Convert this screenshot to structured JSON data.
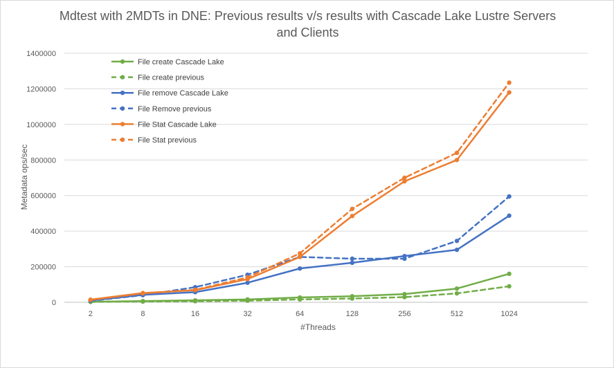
{
  "chart_data": {
    "type": "line",
    "title_line1": "Mdtest with 2MDTs in DNE:  Previous results v/s results with Cascade Lake Lustre Servers",
    "title_line2": "and Clients",
    "xlabel": "#Threads",
    "ylabel": "Metadata ops/sec",
    "categories": [
      "2",
      "8",
      "16",
      "32",
      "64",
      "128",
      "256",
      "512",
      "1024"
    ],
    "ylim": [
      0,
      1400000
    ],
    "yticks": [
      0,
      200000,
      400000,
      600000,
      800000,
      1000000,
      1200000,
      1400000
    ],
    "ytick_labels": [
      "0",
      "200000",
      "400000",
      "600000",
      "800000",
      "1000000",
      "1200000",
      "1400000"
    ],
    "legend_position": "top-left",
    "grid": true,
    "series": [
      {
        "name": "File create Cascade Lake",
        "color": "#70ad47",
        "dashed": false,
        "values": [
          3000,
          7000,
          11000,
          16000,
          27000,
          34000,
          46000,
          77000,
          160000
        ]
      },
      {
        "name": "File create previous",
        "color": "#70ad47",
        "dashed": true,
        "values": [
          2000,
          4000,
          6000,
          9000,
          16000,
          21000,
          29000,
          50000,
          90000
        ]
      },
      {
        "name": "File remove Cascade Lake",
        "color": "#4472c4",
        "dashed": false,
        "values": [
          10000,
          42000,
          57000,
          110000,
          190000,
          222000,
          260000,
          295000,
          487000
        ]
      },
      {
        "name": "File Remove previous",
        "color": "#4472c4",
        "dashed": true,
        "values": [
          8000,
          40000,
          85000,
          155000,
          255000,
          245000,
          245000,
          345000,
          595000
        ]
      },
      {
        "name": "File Stat Cascade Lake",
        "color": "#ed7d31",
        "dashed": false,
        "values": [
          15000,
          52000,
          68000,
          130000,
          255000,
          485000,
          680000,
          800000,
          1180000
        ]
      },
      {
        "name": "File Stat previous",
        "color": "#ed7d31",
        "dashed": true,
        "values": [
          13000,
          50000,
          70000,
          140000,
          275000,
          525000,
          700000,
          840000,
          1235000
        ]
      }
    ]
  }
}
